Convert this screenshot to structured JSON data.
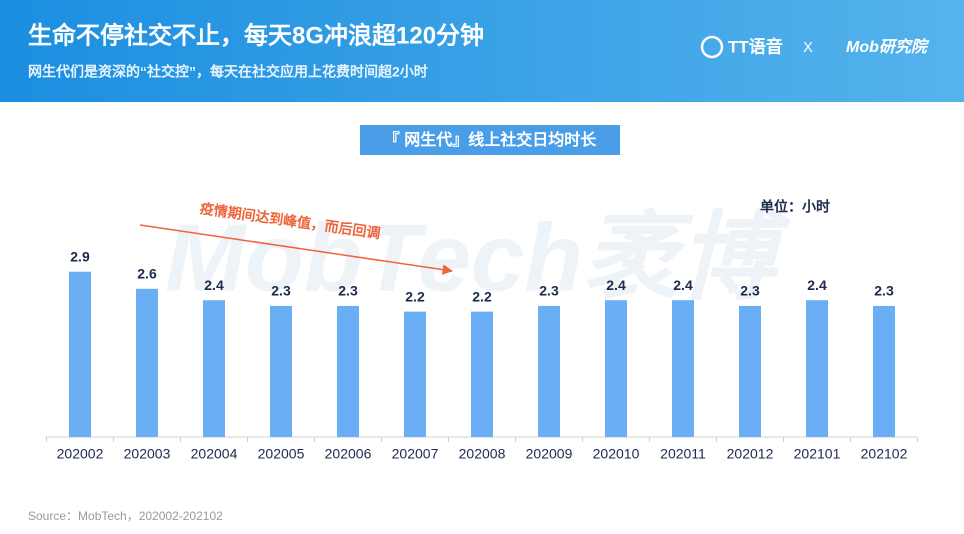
{
  "header": {
    "title": "生命不停社交不止，每天8G冲浪超120分钟",
    "subtitle": "网生代们是资深的“社交控”，每天在社交应用上花费时间超2小时",
    "logo_left": "TT语音",
    "logo_sep": "X",
    "logo_right": "Mob研究院"
  },
  "chart_data": {
    "type": "bar",
    "title": "『 网生代』线上社交日均时长",
    "unit_label": "单位：小时",
    "annotation": "疫情期间达到峰值，而后回调",
    "watermark": "MobTech袤博",
    "categories": [
      "202002",
      "202003",
      "202004",
      "202005",
      "202006",
      "202007",
      "202008",
      "202009",
      "202010",
      "202011",
      "202012",
      "202101",
      "202102"
    ],
    "values": [
      2.9,
      2.6,
      2.4,
      2.3,
      2.3,
      2.2,
      2.2,
      2.3,
      2.4,
      2.4,
      2.3,
      2.4,
      2.3
    ],
    "color": "#6aaff5"
  },
  "source": "Source：MobTech，202002-202102"
}
